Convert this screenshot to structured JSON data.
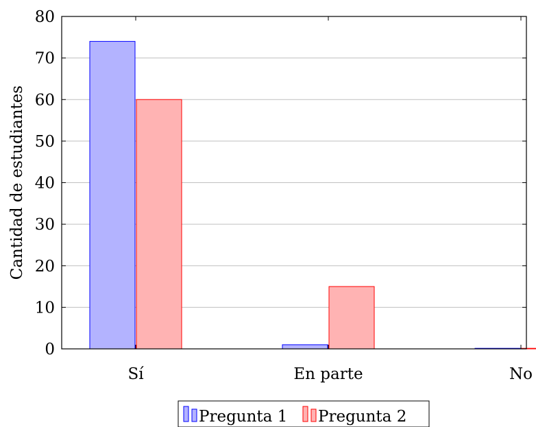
{
  "chart_data": {
    "type": "bar",
    "categories": [
      "Sí",
      "En parte",
      "No"
    ],
    "series": [
      {
        "name": "Pregunta 1",
        "values": [
          74,
          1,
          0
        ],
        "fill": "#b3b3ff",
        "stroke": "#0000ff"
      },
      {
        "name": "Pregunta 2",
        "values": [
          60,
          15,
          0
        ],
        "fill": "#ffb3b3",
        "stroke": "#ff0000"
      }
    ],
    "title": "",
    "xlabel": "",
    "ylabel": "Cantidad de estudiantes",
    "ylim": [
      0,
      80
    ],
    "yticks": [
      0,
      10,
      20,
      30,
      40,
      50,
      60,
      70,
      80
    ],
    "grid": "horizontal",
    "legend_position": "bottom"
  }
}
